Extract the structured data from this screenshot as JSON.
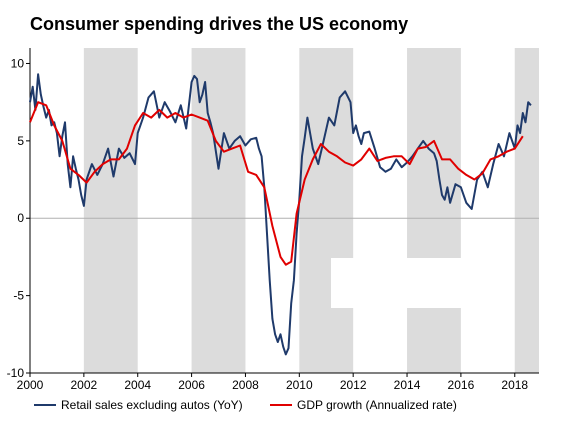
{
  "title": "Consumer spending drives the US economy",
  "chart_data": {
    "type": "line",
    "title": "Consumer spending drives the US economy",
    "xlabel": "",
    "ylabel": "",
    "xlim": [
      2000,
      2018.9
    ],
    "ylim": [
      -10,
      11
    ],
    "x_ticks": [
      "2000",
      "2002",
      "2004",
      "2006",
      "2008",
      "2010",
      "2012",
      "2014",
      "2016",
      "2018"
    ],
    "y_ticks": [
      "10",
      "5",
      "0",
      "-5",
      "-10"
    ],
    "grid": false,
    "legend_position": "bottom",
    "shaded_periods": [
      [
        2002,
        2004
      ],
      [
        2006,
        2008
      ],
      [
        2010,
        2012
      ],
      [
        2014,
        2016
      ],
      [
        2018,
        2018.9
      ]
    ],
    "series": [
      {
        "name": "Retail sales excluding autos (YoY)",
        "color": "#1f3a6b",
        "x": [
          2000.0,
          2000.1,
          2000.2,
          2000.3,
          2000.4,
          2000.5,
          2000.6,
          2000.7,
          2000.8,
          2000.9,
          2001.0,
          2001.1,
          2001.2,
          2001.3,
          2001.4,
          2001.5,
          2001.6,
          2001.7,
          2001.8,
          2001.9,
          2002.0,
          2002.1,
          2002.3,
          2002.5,
          2002.7,
          2002.9,
          2003.1,
          2003.3,
          2003.5,
          2003.7,
          2003.9,
          2004.0,
          2004.2,
          2004.4,
          2004.6,
          2004.8,
          2005.0,
          2005.2,
          2005.4,
          2005.6,
          2005.8,
          2006.0,
          2006.1,
          2006.2,
          2006.3,
          2006.4,
          2006.5,
          2006.6,
          2006.7,
          2006.8,
          2007.0,
          2007.2,
          2007.4,
          2007.6,
          2007.8,
          2008.0,
          2008.2,
          2008.4,
          2008.5,
          2008.6,
          2008.7,
          2008.8,
          2008.9,
          2009.0,
          2009.1,
          2009.2,
          2009.3,
          2009.4,
          2009.5,
          2009.6,
          2009.7,
          2009.8,
          2009.9,
          2010.0,
          2010.1,
          2010.2,
          2010.3,
          2010.5,
          2010.7,
          2010.9,
          2011.1,
          2011.3,
          2011.5,
          2011.7,
          2011.9,
          2012.0,
          2012.1,
          2012.2,
          2012.3,
          2012.4,
          2012.6,
          2012.8,
          2013.0,
          2013.2,
          2013.4,
          2013.6,
          2013.8,
          2014.0,
          2014.2,
          2014.4,
          2014.6,
          2014.8,
          2015.0,
          2015.1,
          2015.2,
          2015.3,
          2015.4,
          2015.5,
          2015.6,
          2015.8,
          2016.0,
          2016.2,
          2016.4,
          2016.6,
          2016.8,
          2017.0,
          2017.2,
          2017.4,
          2017.6,
          2017.8,
          2018.0,
          2018.1,
          2018.2,
          2018.3,
          2018.4,
          2018.5,
          2018.6
        ],
        "values": [
          7.5,
          8.5,
          7.0,
          9.3,
          8.0,
          7.2,
          6.5,
          7.0,
          6.0,
          6.2,
          5.5,
          4.0,
          5.3,
          6.2,
          3.5,
          2.0,
          4.0,
          3.2,
          2.5,
          1.5,
          0.8,
          2.5,
          3.5,
          2.8,
          3.5,
          4.5,
          2.7,
          4.5,
          3.9,
          4.2,
          3.5,
          5.5,
          6.5,
          7.8,
          8.2,
          6.5,
          7.5,
          6.9,
          6.2,
          7.3,
          5.8,
          8.8,
          9.2,
          9.0,
          7.5,
          8.0,
          8.8,
          6.8,
          6.2,
          5.5,
          3.2,
          5.5,
          4.5,
          5.0,
          5.3,
          4.7,
          5.1,
          5.2,
          4.5,
          4.0,
          2.0,
          -1.0,
          -4.0,
          -6.5,
          -7.5,
          -8.0,
          -7.5,
          -8.3,
          -8.8,
          -8.4,
          -5.5,
          -4.0,
          -1.0,
          1.2,
          4.0,
          5.2,
          6.5,
          4.5,
          3.5,
          5.0,
          6.5,
          6.0,
          7.8,
          8.2,
          7.5,
          5.5,
          6.0,
          5.3,
          4.8,
          5.5,
          5.6,
          4.5,
          3.3,
          3.0,
          3.2,
          3.8,
          3.3,
          3.6,
          4.0,
          4.5,
          5.0,
          4.5,
          4.2,
          3.7,
          2.5,
          1.5,
          1.2,
          2.0,
          1.0,
          2.2,
          2.0,
          1.0,
          0.6,
          2.5,
          3.0,
          2.0,
          3.5,
          4.8,
          4.0,
          5.5,
          4.5,
          6.0,
          5.5,
          6.8,
          6.2,
          7.5,
          7.3
        ]
      },
      {
        "name": "GDP growth (Annualized rate)",
        "color": "#e00000",
        "x": [
          2000.0,
          2000.3,
          2000.6,
          2000.9,
          2001.2,
          2001.5,
          2001.8,
          2002.1,
          2002.4,
          2002.7,
          2003.0,
          2003.3,
          2003.6,
          2003.9,
          2004.2,
          2004.5,
          2004.8,
          2005.1,
          2005.4,
          2005.7,
          2006.0,
          2006.3,
          2006.6,
          2006.9,
          2007.2,
          2007.5,
          2007.8,
          2008.1,
          2008.4,
          2008.7,
          2009.0,
          2009.3,
          2009.5,
          2009.7,
          2009.9,
          2010.2,
          2010.5,
          2010.8,
          2011.1,
          2011.4,
          2011.7,
          2012.0,
          2012.3,
          2012.6,
          2012.9,
          2013.2,
          2013.5,
          2013.8,
          2014.1,
          2014.4,
          2014.7,
          2015.0,
          2015.3,
          2015.6,
          2015.9,
          2016.2,
          2016.5,
          2016.8,
          2017.1,
          2017.4,
          2017.7,
          2018.0,
          2018.3
        ],
        "values": [
          6.2,
          7.5,
          7.3,
          6.0,
          5.0,
          3.2,
          2.8,
          2.3,
          3.0,
          3.5,
          3.8,
          3.8,
          4.5,
          6.0,
          6.8,
          6.5,
          7.0,
          6.5,
          6.8,
          6.5,
          6.7,
          6.5,
          6.3,
          5.0,
          4.3,
          4.5,
          4.7,
          3.0,
          2.8,
          2.0,
          -0.5,
          -2.5,
          -3.0,
          -2.8,
          0.3,
          2.5,
          3.8,
          4.8,
          4.3,
          4.0,
          3.6,
          3.4,
          3.8,
          4.5,
          3.7,
          3.9,
          4.0,
          4.0,
          3.5,
          4.5,
          4.6,
          5.0,
          3.8,
          3.8,
          3.2,
          2.8,
          2.5,
          2.9,
          3.8,
          4.0,
          4.3,
          4.5,
          5.3
        ]
      }
    ]
  }
}
